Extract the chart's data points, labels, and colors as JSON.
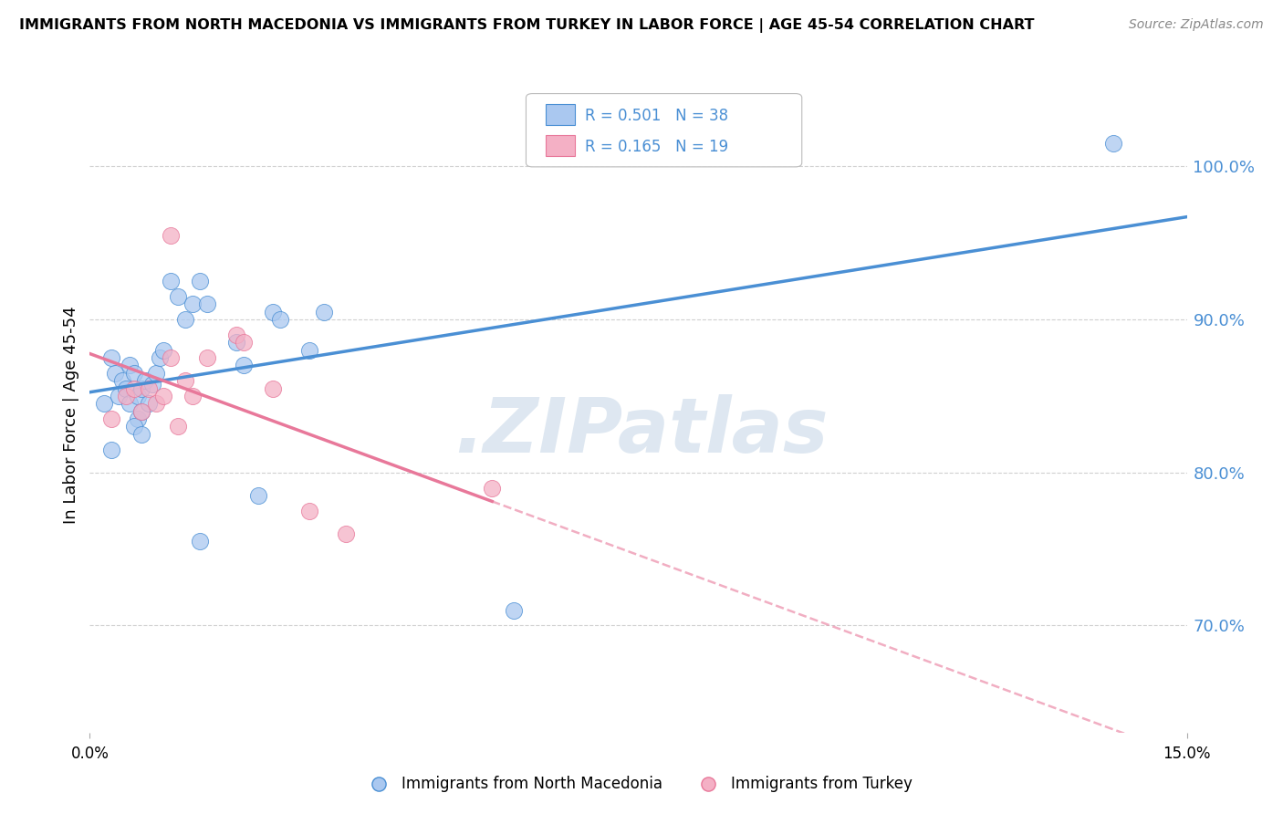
{
  "title": "IMMIGRANTS FROM NORTH MACEDONIA VS IMMIGRANTS FROM TURKEY IN LABOR FORCE | AGE 45-54 CORRELATION CHART",
  "source": "Source: ZipAtlas.com",
  "ylabel": "In Labor Force | Age 45-54",
  "xlim": [
    0.0,
    15.0
  ],
  "ylim": [
    63.0,
    104.5
  ],
  "R_blue": 0.501,
  "N_blue": 38,
  "R_pink": 0.165,
  "N_pink": 19,
  "color_blue": "#aac8f0",
  "color_pink": "#f4b0c5",
  "line_blue": "#4a8fd4",
  "line_pink": "#e8789a",
  "scatter_blue": [
    [
      0.2,
      84.5
    ],
    [
      0.3,
      87.5
    ],
    [
      0.35,
      86.5
    ],
    [
      0.4,
      85.0
    ],
    [
      0.45,
      86.0
    ],
    [
      0.5,
      85.5
    ],
    [
      0.55,
      87.0
    ],
    [
      0.55,
      84.5
    ],
    [
      0.6,
      86.5
    ],
    [
      0.65,
      85.0
    ],
    [
      0.65,
      83.5
    ],
    [
      0.7,
      85.5
    ],
    [
      0.7,
      84.0
    ],
    [
      0.75,
      86.0
    ],
    [
      0.8,
      84.5
    ],
    [
      0.85,
      85.8
    ],
    [
      0.9,
      86.5
    ],
    [
      0.95,
      87.5
    ],
    [
      1.0,
      88.0
    ],
    [
      1.1,
      92.5
    ],
    [
      1.2,
      91.5
    ],
    [
      1.3,
      90.0
    ],
    [
      1.4,
      91.0
    ],
    [
      1.5,
      92.5
    ],
    [
      1.6,
      91.0
    ],
    [
      2.0,
      88.5
    ],
    [
      2.1,
      87.0
    ],
    [
      2.5,
      90.5
    ],
    [
      2.6,
      90.0
    ],
    [
      3.0,
      88.0
    ],
    [
      3.2,
      90.5
    ],
    [
      0.3,
      81.5
    ],
    [
      0.6,
      83.0
    ],
    [
      0.7,
      82.5
    ],
    [
      1.5,
      75.5
    ],
    [
      2.3,
      78.5
    ],
    [
      5.8,
      71.0
    ],
    [
      14.0,
      101.5
    ]
  ],
  "scatter_pink": [
    [
      0.3,
      83.5
    ],
    [
      0.5,
      85.0
    ],
    [
      0.6,
      85.5
    ],
    [
      0.7,
      84.0
    ],
    [
      0.8,
      85.5
    ],
    [
      0.9,
      84.5
    ],
    [
      1.0,
      85.0
    ],
    [
      1.1,
      87.5
    ],
    [
      1.2,
      83.0
    ],
    [
      1.3,
      86.0
    ],
    [
      1.4,
      85.0
    ],
    [
      1.6,
      87.5
    ],
    [
      2.0,
      89.0
    ],
    [
      2.1,
      88.5
    ],
    [
      2.5,
      85.5
    ],
    [
      3.0,
      77.5
    ],
    [
      3.5,
      76.0
    ],
    [
      5.5,
      79.0
    ],
    [
      1.1,
      95.5
    ]
  ],
  "bg_color": "#ffffff",
  "grid_color": "#d0d0d0",
  "ytick_vals": [
    70,
    80,
    90,
    100
  ],
  "blue_label": "Immigrants from North Macedonia",
  "pink_label": "Immigrants from Turkey",
  "legend_text_color": "#4a8fd4",
  "watermark": ".ZIPatlas"
}
